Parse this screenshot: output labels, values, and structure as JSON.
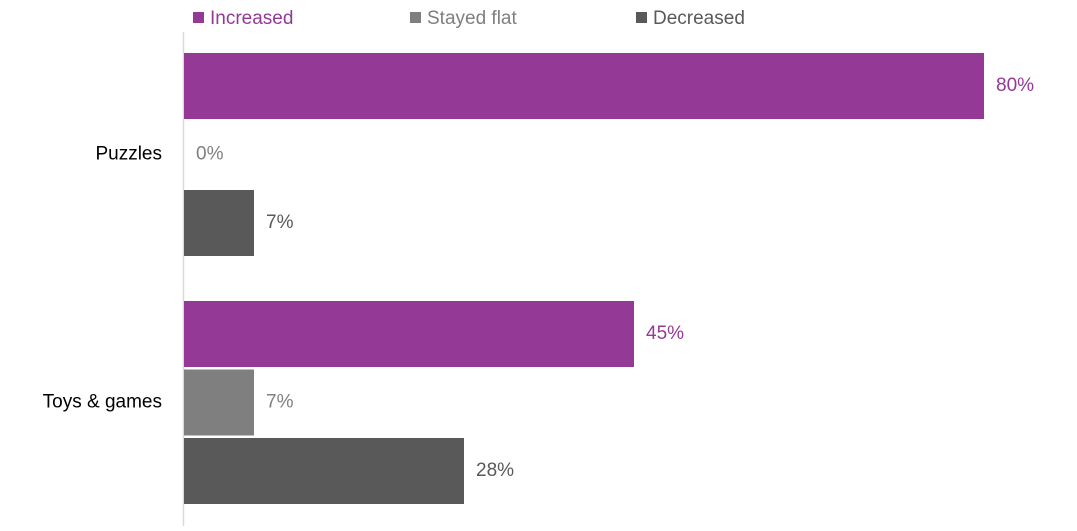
{
  "chart_data": {
    "type": "bar",
    "orientation": "horizontal",
    "categories": [
      "Puzzles",
      "Toys & games"
    ],
    "series": [
      {
        "name": "Increased",
        "color": "#943995",
        "values": [
          80,
          45
        ],
        "labels": [
          "80%",
          "45%"
        ]
      },
      {
        "name": "Stayed flat",
        "color": "#7f7f7f",
        "values": [
          0,
          7
        ],
        "labels": [
          "0%",
          "7%"
        ]
      },
      {
        "name": "Decreased",
        "color": "#595959",
        "values": [
          7,
          28
        ],
        "labels": [
          "7%",
          "28%"
        ]
      }
    ],
    "xlim": [
      0,
      100
    ],
    "unit": "%",
    "legend_position": "top",
    "grid": false
  }
}
